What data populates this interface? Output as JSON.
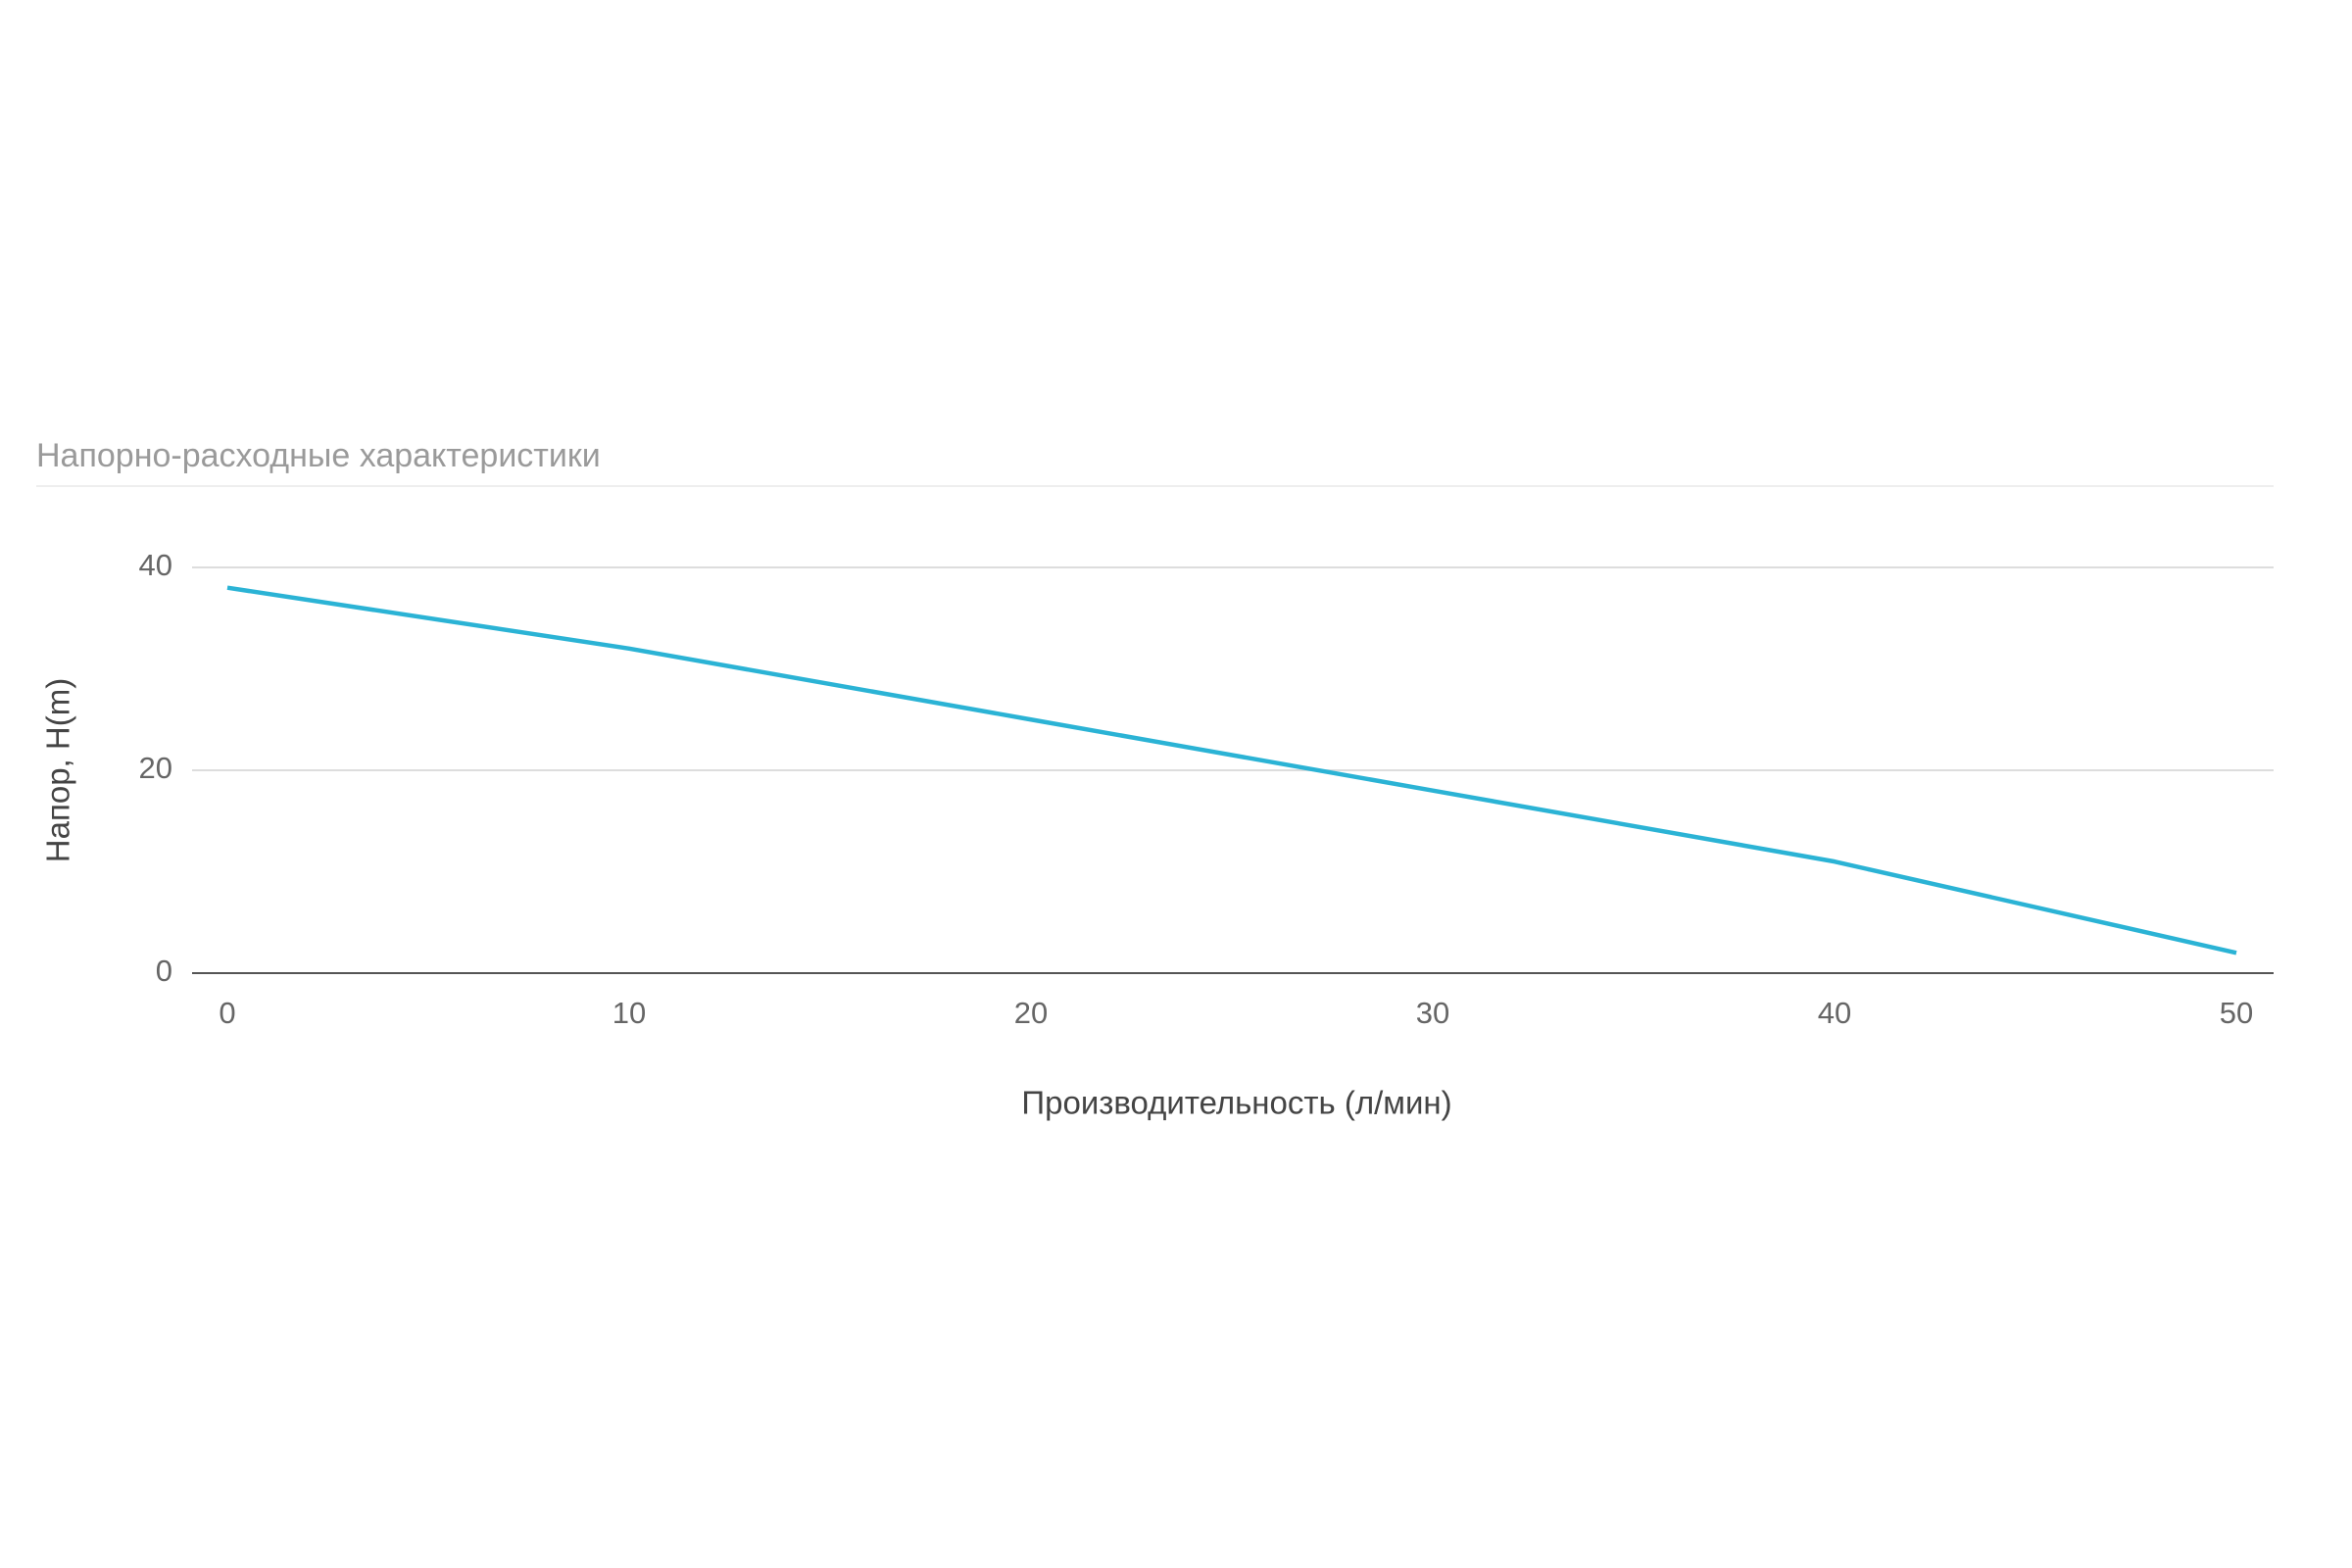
{
  "chart_data": {
    "type": "line",
    "title": "Напорно-расходные характеристики",
    "x_label": "Производительность (л/мин)",
    "y_label": "Напор, H(m)",
    "x": [
      0,
      10,
      20,
      30,
      40,
      50
    ],
    "series": [
      {
        "color": "#2bb3d5",
        "values": [
          38,
          32,
          25,
          18,
          11,
          2
        ]
      }
    ],
    "xlim": [
      0,
      50
    ],
    "xticks": [
      0,
      10,
      20,
      30,
      40,
      50
    ],
    "ylim": [
      0,
      40
    ],
    "yticks": [
      0,
      20,
      40
    ],
    "grid": true
  }
}
